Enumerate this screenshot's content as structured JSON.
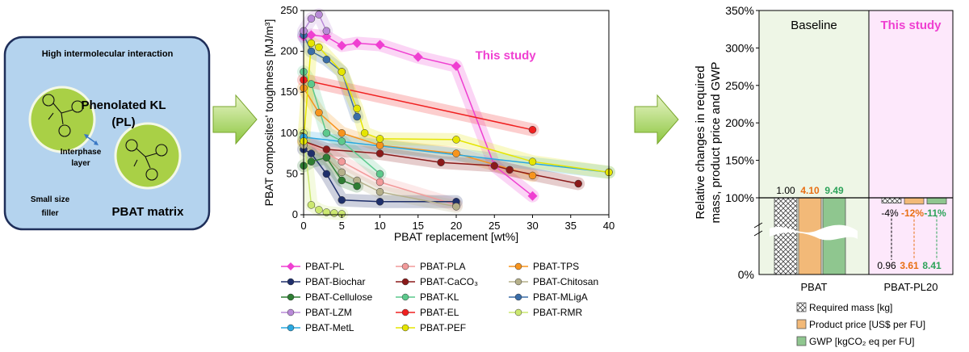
{
  "schematic": {
    "title": "High intermolecular interaction",
    "filler_label": "Phenolated KL (PL)",
    "interphase_label": "Interphase layer",
    "size_label": "Small size filler",
    "matrix_label": "PBAT matrix",
    "colors": {
      "panel": "#b4d3ee",
      "panel_border": "#1f2f5a",
      "particle": "#a9d046",
      "particle_ring": "#f4f8e6"
    },
    "icons": [
      "molecule-structure-icon",
      "double-arrow-icon"
    ]
  },
  "arrows": {
    "color_top": "#e7f4c6",
    "color_bottom": "#8cc63f",
    "icon": "right-block-arrow-icon"
  },
  "chart_data": [
    {
      "type": "line",
      "ylabel": "PBAT composites' toughness [MJ/m³]",
      "xlabel": "PBAT replacement [wt%]",
      "xlim": [
        0,
        40
      ],
      "ylim": [
        0,
        250
      ],
      "xticks": [
        0,
        5,
        10,
        15,
        20,
        25,
        30,
        35,
        40
      ],
      "yticks": [
        0,
        50,
        100,
        150,
        200,
        250
      ],
      "grid": false,
      "annotation": "This study",
      "legend_position": "bottom",
      "series": [
        {
          "name": "PBAT-PL",
          "color": "#ef3fd1",
          "marker": "diamond",
          "x": [
            0,
            1,
            3,
            5,
            7,
            10,
            15,
            20,
            25,
            30
          ],
          "y": [
            218,
            220,
            218,
            207,
            210,
            208,
            193,
            182,
            60,
            23
          ]
        },
        {
          "name": "PBAT-PLA",
          "color": "#f29a9a",
          "marker": "circle",
          "x": [
            0,
            5,
            10,
            20
          ],
          "y": [
            90,
            65,
            40,
            12
          ]
        },
        {
          "name": "PBAT-TPS",
          "color": "#f7941d",
          "marker": "circle",
          "x": [
            0,
            2,
            5,
            10,
            20,
            30
          ],
          "y": [
            155,
            125,
            100,
            85,
            75,
            48
          ]
        },
        {
          "name": "PBAT-Biochar",
          "color": "#1f2f6b",
          "marker": "circle",
          "x": [
            0,
            1,
            3,
            5,
            10,
            20
          ],
          "y": [
            80,
            75,
            50,
            18,
            16,
            16
          ]
        },
        {
          "name": "PBAT-CaCO₃",
          "color": "#8b1a1a",
          "marker": "circle",
          "x": [
            0,
            3,
            10,
            18,
            25,
            27,
            36
          ],
          "y": [
            90,
            80,
            75,
            64,
            60,
            55,
            38
          ]
        },
        {
          "name": "PBAT-Chitosan",
          "color": "#b5b08a",
          "marker": "circle",
          "x": [
            0,
            3,
            5,
            7,
            10,
            20
          ],
          "y": [
            85,
            70,
            52,
            42,
            28,
            10
          ]
        },
        {
          "name": "PBAT-Cellulose",
          "color": "#2e7d32",
          "marker": "circle",
          "x": [
            0,
            1,
            3,
            5,
            7
          ],
          "y": [
            60,
            65,
            70,
            42,
            35
          ]
        },
        {
          "name": "PBAT-KL",
          "color": "#5cc98c",
          "marker": "circle",
          "x": [
            0,
            1,
            3,
            5,
            10
          ],
          "y": [
            175,
            160,
            100,
            90,
            50
          ]
        },
        {
          "name": "PBAT-MLigA",
          "color": "#3a6da8",
          "marker": "circle",
          "x": [
            0,
            1,
            3,
            5,
            7
          ],
          "y": [
            220,
            200,
            190,
            175,
            120
          ]
        },
        {
          "name": "PBAT-LZM",
          "color": "#b98ad8",
          "marker": "circle",
          "x": [
            0,
            1,
            2,
            3
          ],
          "y": [
            225,
            240,
            245,
            225
          ]
        },
        {
          "name": "PBAT-EL",
          "color": "#f02020",
          "marker": "circle",
          "x": [
            0,
            30
          ],
          "y": [
            165,
            104
          ]
        },
        {
          "name": "PBAT-RMR",
          "color": "#cce870",
          "marker": "circle",
          "x": [
            0,
            1,
            2,
            3,
            4,
            5
          ],
          "y": [
            100,
            12,
            6,
            3,
            2,
            1
          ]
        },
        {
          "name": "PBAT-MetL",
          "color": "#29a8e0",
          "marker": "circle",
          "x": [
            0,
            40
          ],
          "y": [
            95,
            52
          ]
        },
        {
          "name": "PBAT-PEF",
          "color": "#e5e500",
          "marker": "circle",
          "x": [
            0,
            1,
            2,
            5,
            7,
            8,
            10,
            20,
            30,
            40
          ],
          "y": [
            90,
            210,
            205,
            175,
            130,
            100,
            93,
            92,
            65,
            52
          ]
        }
      ]
    },
    {
      "type": "bar",
      "ylabel": "Relative changes in required mass, product price and GWP",
      "categories": [
        "PBAT",
        "PBAT-PL20"
      ],
      "yticks": [
        "0%",
        "100%",
        "150%",
        "200%",
        "250%",
        "300%",
        "350%"
      ],
      "axis_break": true,
      "regions": [
        {
          "label": "Baseline",
          "color": "#eef6e6",
          "label_color": "#000000"
        },
        {
          "label": "This study",
          "color": "#fde8fb",
          "label_color": "#ef3fd1"
        }
      ],
      "series": [
        {
          "name": "Required mass [kg]",
          "pattern": "crosshatch",
          "color": "#ffffff",
          "absolute": [
            1.0,
            0.96
          ],
          "change": [
            "",
            "-4%"
          ],
          "label_color": "#000000"
        },
        {
          "name": "Product price [US$ per FU]",
          "color": "#f2b978",
          "absolute": [
            4.1,
            3.61
          ],
          "change": [
            "",
            "-12%"
          ],
          "label_color": "#e86f14"
        },
        {
          "name": "GWP [kgCO₂ eq per FU]",
          "color": "#8fc68f",
          "absolute": [
            9.49,
            8.41
          ],
          "change": [
            "",
            "-11%"
          ],
          "label_color": "#2ea35a"
        }
      ],
      "value_labels": {
        "pbat": [
          "1.00",
          "4.10",
          "9.49"
        ],
        "pl20_change": [
          "-4%",
          "-12%",
          "-11%"
        ],
        "pl20_abs": [
          "0.96",
          "3.61",
          "8.41"
        ]
      }
    }
  ]
}
